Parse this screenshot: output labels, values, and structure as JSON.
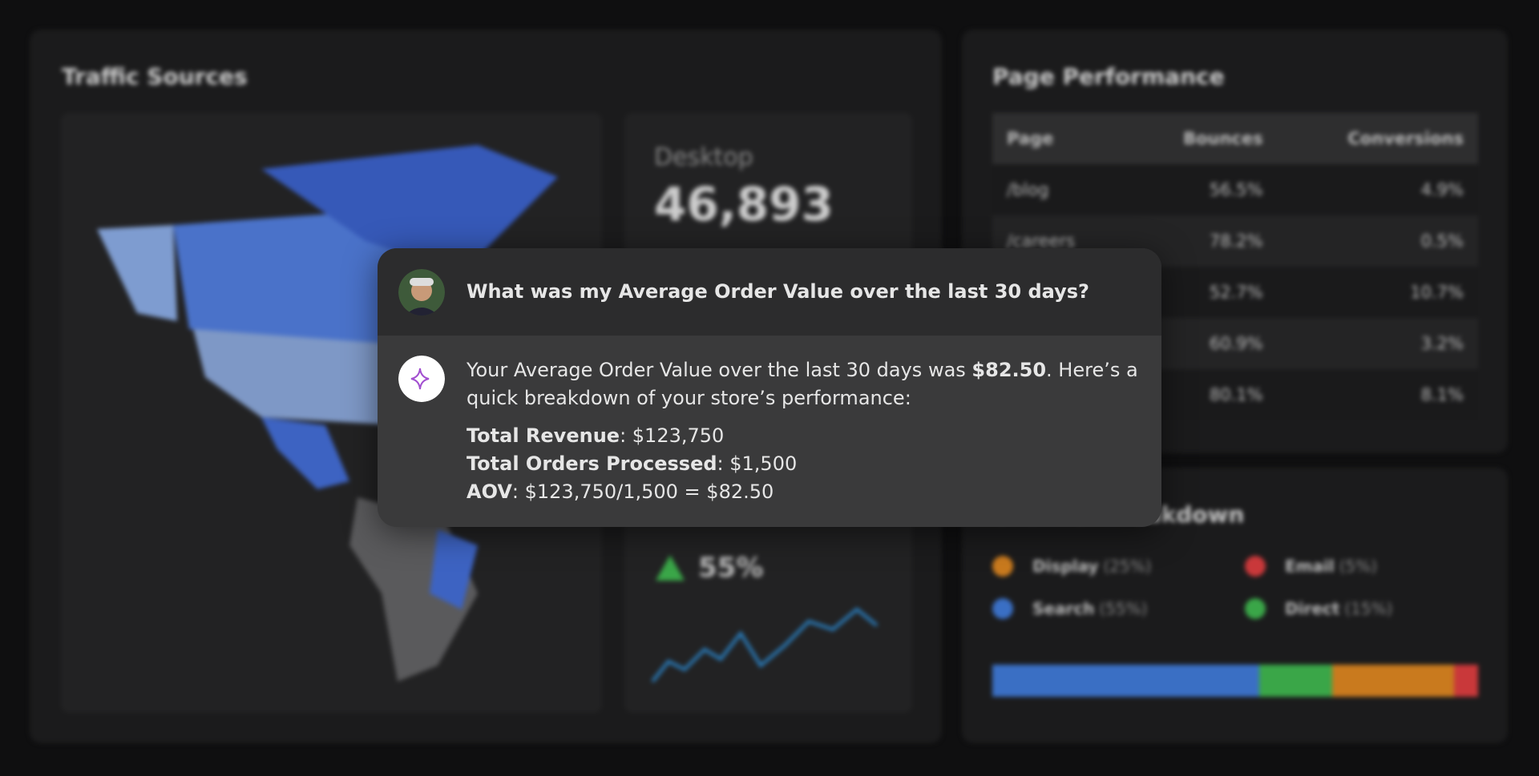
{
  "dashboard": {
    "traffic": {
      "title": "Traffic Sources",
      "device": "Desktop",
      "count": "46,893",
      "change": "55%"
    },
    "performance": {
      "title": "Page Performance",
      "headers": [
        "Page",
        "Bounces",
        "Conversions"
      ],
      "rows": [
        [
          "/blog",
          "56.5%",
          "4.9%"
        ],
        [
          "/careers",
          "78.2%",
          "0.5%"
        ],
        [
          null,
          "52.7%",
          "10.7%"
        ],
        [
          null,
          "60.9%",
          "3.2%"
        ],
        [
          null,
          "80.1%",
          "8.1%"
        ]
      ]
    },
    "channels": {
      "title": "Channel Breakdown",
      "items": [
        {
          "name": "Display",
          "label": "(25%)",
          "value": 25,
          "color": "#c97a1e"
        },
        {
          "name": "Email",
          "label": "(5%)",
          "value": 5,
          "color": "#c9383a"
        },
        {
          "name": "Search",
          "label": "(55%)",
          "value": 55,
          "color": "#3a6fc4"
        },
        {
          "name": "Direct",
          "label": "(15%)",
          "value": 15,
          "color": "#3aa648"
        }
      ],
      "bar_order": [
        2,
        3,
        0,
        1
      ]
    }
  },
  "chat": {
    "question": "What was my Average Order Value over the last 30 days?",
    "answer": [
      "Your Average Order Value over the last 30 days was ",
      "$82.50",
      ". Here’s a quick breakdown of your store’s performance:"
    ],
    "breakdown": [
      {
        "label": "Total Revenue",
        "text": ": $123,750"
      },
      {
        "label": "Total Orders Processed",
        "text": ": $1,500"
      },
      {
        "label": "AOV",
        "text": ": $123,750/1,500 = $82.50"
      }
    ]
  }
}
